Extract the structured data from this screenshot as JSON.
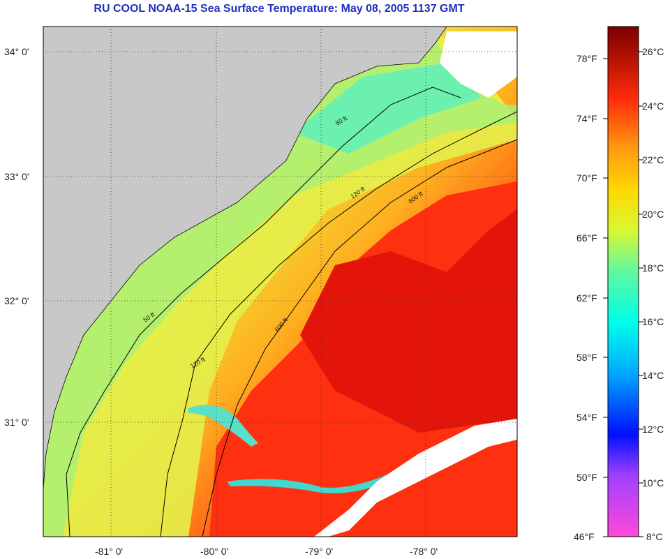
{
  "title": "RU COOL  NOAA-15  Sea Surface Temperature:  May 08, 2005 1137 GMT",
  "axes": {
    "lat_labels": [
      "34° 0'",
      "33° 0'",
      "32° 0'",
      "31° 0'"
    ],
    "lon_labels": [
      "-81° 0'",
      "-80° 0'",
      "-79° 0'",
      "-78° 0'"
    ]
  },
  "contour_labels": [
    "50 ft",
    "120 ft",
    "600 ft"
  ],
  "colorbar": {
    "fahrenheit": [
      "78°F",
      "74°F",
      "70°F",
      "66°F",
      "62°F",
      "58°F",
      "54°F",
      "50°F",
      "46°F"
    ],
    "celsius": [
      "26°C",
      "24°C",
      "22°C",
      "20°C",
      "18°C",
      "16°C",
      "14°C",
      "12°C",
      "10°C",
      "8°C"
    ]
  },
  "colors": {
    "land": "#c8c8c8",
    "cloud": "#ffffff",
    "warm_core": "#e8160c",
    "title_blue": "#1f2fbf"
  }
}
